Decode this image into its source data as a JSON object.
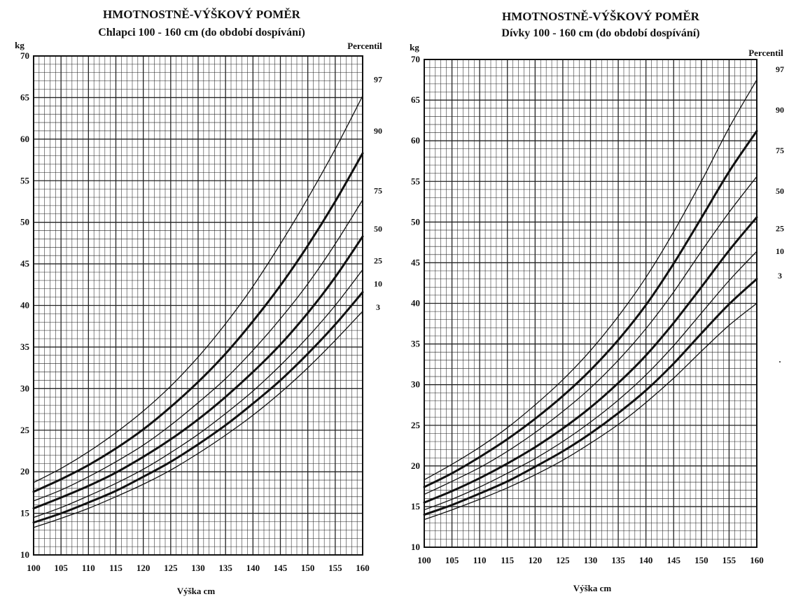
{
  "chart_data": [
    {
      "type": "line",
      "title": "HMOTNOSTNĚ-VÝŠKOVÝ POMĚR",
      "subtitle": "Chlapci 100 - 160 cm (do období dospívání)",
      "xlabel": "Výška cm",
      "ylabel": "kg",
      "legend_title": "Percentil",
      "xlim": [
        100,
        160
      ],
      "ylim": [
        10,
        70
      ],
      "x_ticks": [
        100,
        105,
        110,
        115,
        120,
        125,
        130,
        135,
        140,
        145,
        150,
        155,
        160
      ],
      "y_ticks": [
        10,
        15,
        20,
        25,
        30,
        35,
        40,
        45,
        50,
        55,
        60,
        65,
        70
      ],
      "grid": true,
      "x": [
        100,
        105,
        110,
        115,
        120,
        125,
        130,
        135,
        140,
        145,
        150,
        155,
        160
      ],
      "series": [
        {
          "name": "97",
          "label_y": 67.2,
          "values": [
            18.7,
            20.4,
            22.4,
            24.7,
            27.3,
            30.3,
            33.8,
            37.8,
            42.3,
            47.4,
            52.9,
            58.8,
            65.2
          ]
        },
        {
          "name": "90",
          "label_y": 61.0,
          "values": [
            17.6,
            19.1,
            20.8,
            22.8,
            25.1,
            27.8,
            30.8,
            34.2,
            38.1,
            42.4,
            47.2,
            52.5,
            58.3
          ]
        },
        {
          "name": "75",
          "label_y": 53.8,
          "values": [
            16.5,
            17.8,
            19.4,
            21.2,
            23.2,
            25.6,
            28.3,
            31.2,
            34.6,
            38.4,
            42.6,
            47.4,
            52.7
          ]
        },
        {
          "name": "50",
          "label_y": 49.2,
          "values": [
            15.6,
            16.9,
            18.3,
            19.9,
            21.8,
            23.9,
            26.3,
            29.0,
            32.0,
            35.3,
            39.1,
            43.4,
            48.3
          ]
        },
        {
          "name": "25",
          "label_y": 45.4,
          "values": [
            14.5,
            15.7,
            17.1,
            18.6,
            20.3,
            22.3,
            24.5,
            27.0,
            29.7,
            32.8,
            36.2,
            40.0,
            44.3
          ]
        },
        {
          "name": "10",
          "label_y": 42.6,
          "values": [
            13.9,
            15.0,
            16.3,
            17.7,
            19.4,
            21.2,
            23.3,
            25.6,
            28.2,
            31.0,
            34.2,
            37.7,
            41.6
          ]
        },
        {
          "name": "3",
          "label_y": 39.8,
          "values": [
            13.3,
            14.4,
            15.6,
            17.0,
            18.5,
            20.2,
            22.2,
            24.4,
            26.8,
            29.5,
            32.5,
            35.8,
            39.3
          ]
        }
      ]
    },
    {
      "type": "line",
      "title": "HMOTNOSTNĚ-VÝŠKOVÝ POMĚR",
      "subtitle": "Dívky 100 - 160 cm (do období dospívání)",
      "xlabel": "Výška cm",
      "ylabel": "kg",
      "legend_title": "Percentil",
      "xlim": [
        100,
        160
      ],
      "ylim": [
        10,
        70
      ],
      "x_ticks": [
        100,
        105,
        110,
        115,
        120,
        125,
        130,
        135,
        140,
        145,
        150,
        155,
        160
      ],
      "y_ticks": [
        10,
        15,
        20,
        25,
        30,
        35,
        40,
        45,
        50,
        55,
        60,
        65,
        70
      ],
      "grid": true,
      "x": [
        100,
        105,
        110,
        115,
        120,
        125,
        130,
        135,
        140,
        145,
        150,
        155,
        160
      ],
      "series": [
        {
          "name": "97",
          "label_y": 68.8,
          "values": [
            18.3,
            20.2,
            22.3,
            24.7,
            27.5,
            30.6,
            34.2,
            38.4,
            43.2,
            48.8,
            55.0,
            61.6,
            67.5
          ]
        },
        {
          "name": "90",
          "label_y": 63.8,
          "values": [
            17.4,
            19.1,
            21.1,
            23.3,
            25.8,
            28.6,
            31.8,
            35.5,
            39.8,
            44.9,
            50.5,
            56.2,
            61.2
          ]
        },
        {
          "name": "75",
          "label_y": 58.8,
          "values": [
            16.5,
            18.1,
            19.8,
            21.8,
            24.1,
            26.7,
            29.6,
            33.0,
            36.9,
            41.4,
            46.4,
            51.2,
            55.6
          ]
        },
        {
          "name": "50",
          "label_y": 53.8,
          "values": [
            15.5,
            16.9,
            18.5,
            20.3,
            22.3,
            24.6,
            27.2,
            30.2,
            33.6,
            37.6,
            42.0,
            46.5,
            50.6
          ]
        },
        {
          "name": "25",
          "label_y": 49.2,
          "values": [
            14.6,
            15.9,
            17.4,
            19.1,
            20.9,
            23.0,
            25.4,
            28.1,
            31.2,
            34.8,
            38.8,
            42.8,
            46.4
          ]
        },
        {
          "name": "10",
          "label_y": 46.4,
          "values": [
            14.0,
            15.2,
            16.6,
            18.1,
            19.9,
            21.8,
            24.0,
            26.5,
            29.3,
            32.6,
            36.3,
            39.9,
            43.0
          ]
        },
        {
          "name": "3",
          "label_y": 43.4,
          "values": [
            13.4,
            14.6,
            15.9,
            17.3,
            18.9,
            20.7,
            22.8,
            25.1,
            27.8,
            30.8,
            34.1,
            37.3,
            40.0
          ]
        }
      ]
    }
  ],
  "stray_mark": "."
}
